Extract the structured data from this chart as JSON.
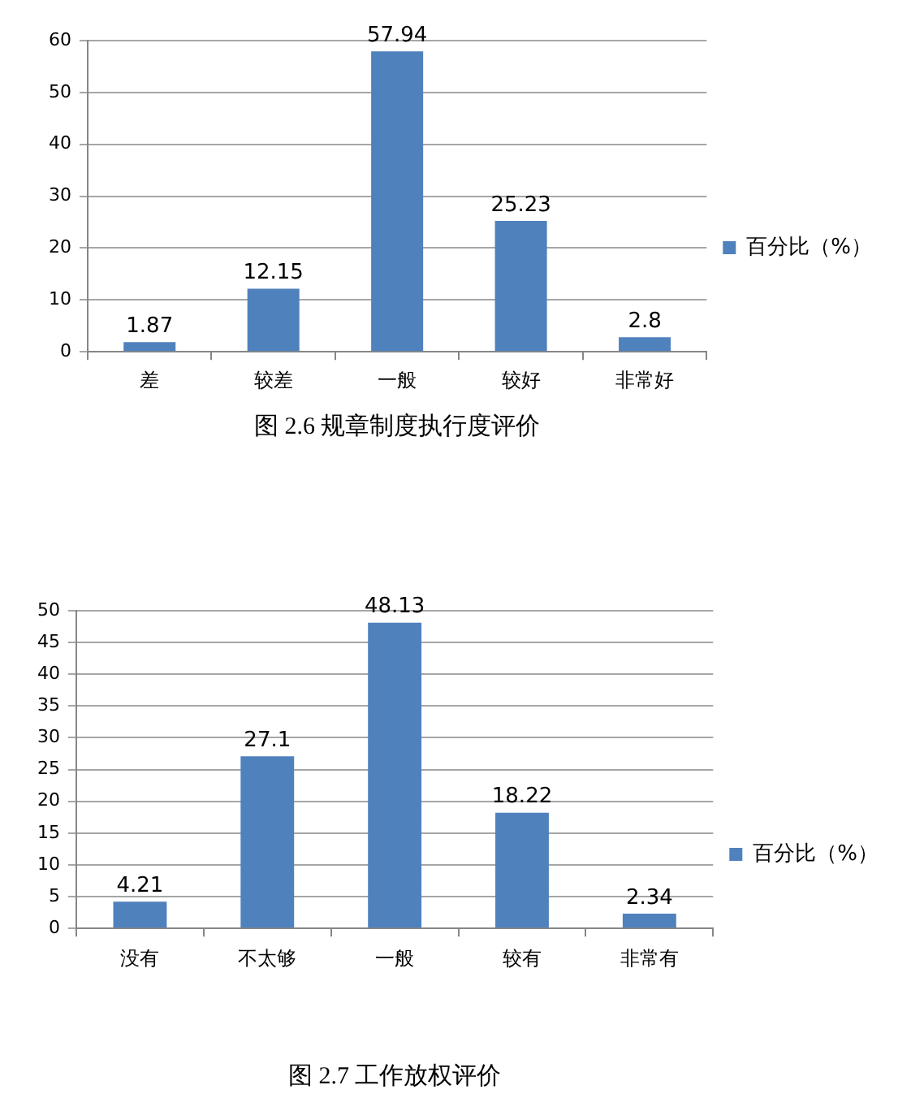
{
  "chart_data": [
    {
      "type": "bar",
      "title": "图 2.6 规章制度执行度评价",
      "categories": [
        "差",
        "较差",
        "一般",
        "较好",
        "非常好"
      ],
      "series": [
        {
          "name": "百分比（%）",
          "color": "#4f81bd",
          "values": [
            1.87,
            12.15,
            57.94,
            25.23,
            2.8
          ]
        }
      ],
      "ylim": [
        0,
        60
      ],
      "yticks": [
        0,
        10,
        20,
        30,
        40,
        50,
        60
      ],
      "grid": "y",
      "legend": "right",
      "data_labels": true
    },
    {
      "type": "bar",
      "title": "图 2.7 工作放权评价",
      "categories": [
        "没有",
        "不太够",
        "一般",
        "较有",
        "非常有"
      ],
      "series": [
        {
          "name": "百分比（%）",
          "color": "#4f81bd",
          "values": [
            4.21,
            27.1,
            48.13,
            18.22,
            2.34
          ]
        }
      ],
      "ylim": [
        0,
        50
      ],
      "yticks": [
        0,
        5,
        10,
        15,
        20,
        25,
        30,
        35,
        40,
        45,
        50
      ],
      "grid": "y",
      "legend": "right",
      "data_labels": true
    }
  ]
}
